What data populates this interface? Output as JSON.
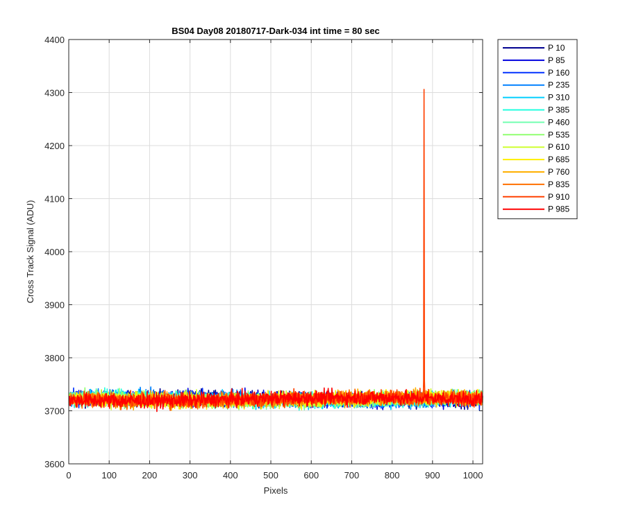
{
  "chart_data": {
    "type": "line",
    "title": "BS04 Day08 20180717-Dark-034 int time = 80 sec",
    "xlabel": "Pixels",
    "ylabel": "Cross Track Signal (ADU)",
    "xlim": [
      0,
      1024
    ],
    "ylim": [
      3600,
      4400
    ],
    "xticks": [
      0,
      100,
      200,
      300,
      400,
      500,
      600,
      700,
      800,
      900,
      1000
    ],
    "yticks": [
      3600,
      3700,
      3800,
      3900,
      4000,
      4100,
      4200,
      4300,
      4400
    ],
    "grid": true,
    "legend_position": "outside-top-right",
    "series": [
      {
        "name": "P 10",
        "color": "#00008F",
        "base": 3722,
        "spread": 14
      },
      {
        "name": "P 85",
        "color": "#0000DF",
        "base": 3722,
        "spread": 14
      },
      {
        "name": "P 160",
        "color": "#0030FF",
        "base": 3722,
        "spread": 14
      },
      {
        "name": "P 235",
        "color": "#0080FF",
        "base": 3722,
        "spread": 14
      },
      {
        "name": "P 310",
        "color": "#00CFFF",
        "base": 3722,
        "spread": 14
      },
      {
        "name": "P 385",
        "color": "#20FFDF",
        "base": 3722,
        "spread": 14
      },
      {
        "name": "P 460",
        "color": "#70FFB0",
        "base": 3722,
        "spread": 14
      },
      {
        "name": "P 535",
        "color": "#90FF70",
        "base": 3722,
        "spread": 14
      },
      {
        "name": "P 610",
        "color": "#CFFF30",
        "base": 3722,
        "spread": 14
      },
      {
        "name": "P 685",
        "color": "#FFEF00",
        "base": 3722,
        "spread": 14
      },
      {
        "name": "P 760",
        "color": "#FFB000",
        "base": 3722,
        "spread": 14
      },
      {
        "name": "P 835",
        "color": "#FF7000",
        "base": 3722,
        "spread": 14
      },
      {
        "name": "P 910",
        "color": "#FF4000",
        "base": 3722,
        "spread": 14,
        "spike": {
          "x": 879,
          "y": 4306
        }
      },
      {
        "name": "P 985",
        "color": "#FF0000",
        "base": 3722,
        "spread": 14
      }
    ]
  }
}
